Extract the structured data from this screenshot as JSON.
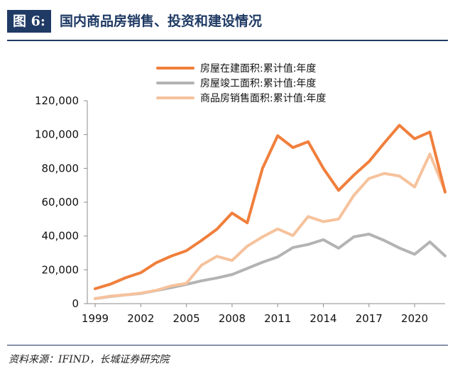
{
  "header": {
    "figure_label": "图 6:",
    "title": "国内商品房销售、投资和建设情况"
  },
  "source": "资料来源：IFIND，长城证券研究院",
  "chart_data": {
    "type": "line",
    "title": "",
    "xlabel": "",
    "ylabel": "",
    "x": [
      1999,
      2000,
      2001,
      2002,
      2003,
      2004,
      2005,
      2006,
      2007,
      2008,
      2009,
      2010,
      2011,
      2012,
      2013,
      2014,
      2015,
      2016,
      2017,
      2018,
      2019,
      2020,
      2021,
      2022
    ],
    "x_ticks": [
      "1999",
      "2002",
      "2005",
      "2008",
      "2011",
      "2014",
      "2017",
      "2020"
    ],
    "y_ticks": [
      "0",
      "20,000",
      "40,000",
      "60,000",
      "80,000",
      "100,000",
      "120,000"
    ],
    "ylim": [
      0,
      120000
    ],
    "grid": false,
    "legend_position": "top",
    "series": [
      {
        "name": "房屋在建面积:累计值:年度",
        "color": "#f07f3c",
        "values": [
          8800,
          11500,
          15300,
          18300,
          24100,
          28100,
          31300,
          37400,
          44000,
          53600,
          47800,
          80000,
          99300,
          92300,
          95800,
          80000,
          67000,
          76000,
          84000,
          95000,
          105500,
          97500,
          101500,
          66000
        ]
      },
      {
        "name": "房屋竣工面积:累计值:年度",
        "color": "#b3b3b3",
        "values": [
          3000,
          4200,
          5200,
          6000,
          7700,
          9500,
          11400,
          13500,
          15200,
          17200,
          20800,
          24500,
          27600,
          33200,
          35000,
          37800,
          32800,
          39500,
          41100,
          37400,
          32900,
          29200,
          36500,
          28300
        ]
      },
      {
        "name": "商品房销售面积:累计值:年度",
        "color": "#f6c29c",
        "values": [
          3000,
          4400,
          5200,
          6200,
          7800,
          10500,
          12000,
          22800,
          28000,
          25500,
          34000,
          39500,
          44200,
          40300,
          51500,
          48500,
          50000,
          64000,
          74000,
          77000,
          75500,
          69000,
          88500,
          66500
        ]
      }
    ]
  }
}
